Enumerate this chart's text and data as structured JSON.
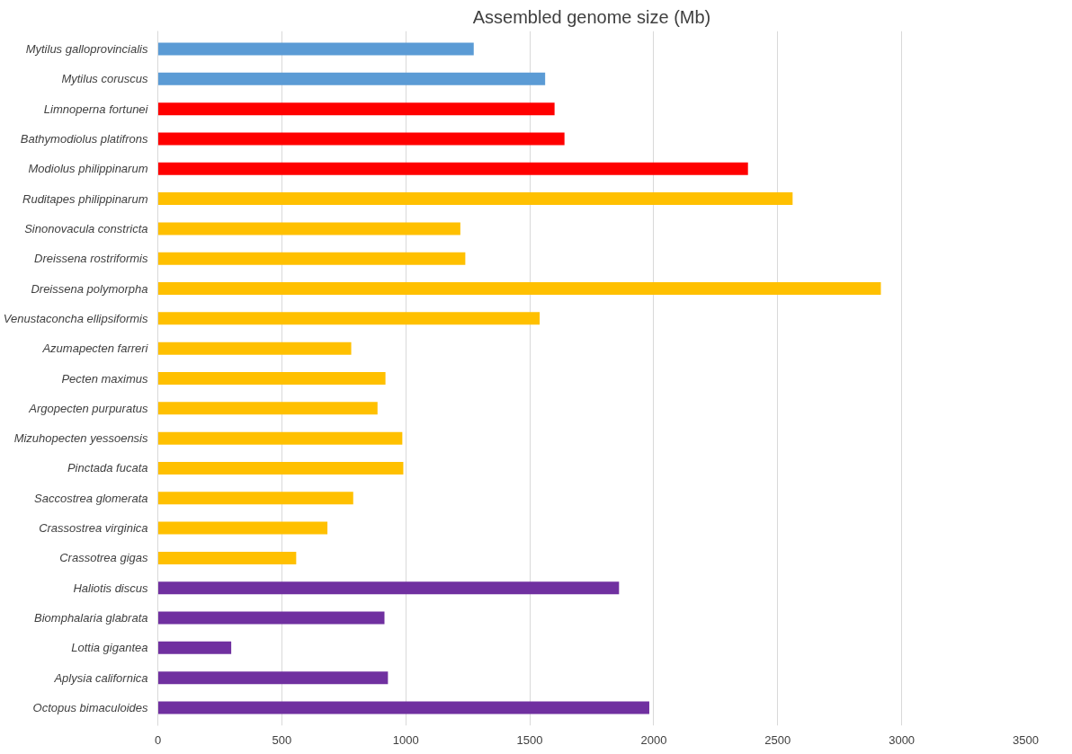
{
  "chart_data": {
    "type": "bar",
    "orientation": "horizontal",
    "title": "Assembled genome size (Mb)",
    "categories": [
      "Mytilus galloprovincialis",
      "Mytilus coruscus",
      "Limnoperna fortunei",
      "Bathymodiolus platifrons",
      "Modiolus philippinarum",
      "Ruditapes philippinarum",
      "Sinonovacula constricta",
      "Dreissena rostriformis",
      "Dreissena polymorpha",
      "Venustaconcha ellipsiformis",
      "Azumapecten farreri",
      "Pecten maximus",
      "Argopecten purpuratus",
      "Mizuhopecten yessoensis",
      "Pinctada fucata",
      "Saccostrea glomerata",
      "Crassostrea virginica",
      "Crassotrea gigas",
      "Haliotis discus",
      "Biomphalaria glabrata",
      "Lottia gigantea",
      "Aplysia californica",
      "Octopus bimaculoides"
    ],
    "values": [
      1274,
      1562,
      1600,
      1640,
      2380,
      2560,
      1220,
      1240,
      2916,
      1540,
      780,
      918,
      886,
      986,
      990,
      788,
      684,
      558,
      1860,
      914,
      296,
      928,
      1982
    ],
    "colors": [
      "#5b9bd5",
      "#5b9bd5",
      "#ff0000",
      "#ff0000",
      "#ff0000",
      "#ffc000",
      "#ffc000",
      "#ffc000",
      "#ffc000",
      "#ffc000",
      "#ffc000",
      "#ffc000",
      "#ffc000",
      "#ffc000",
      "#ffc000",
      "#ffc000",
      "#ffc000",
      "#ffc000",
      "#7030a0",
      "#7030a0",
      "#7030a0",
      "#7030a0",
      "#7030a0"
    ],
    "xlim": [
      0,
      3500
    ],
    "xticks": [
      0,
      500,
      1000,
      1500,
      2000,
      2500,
      3000,
      3500
    ],
    "grid": "x"
  }
}
